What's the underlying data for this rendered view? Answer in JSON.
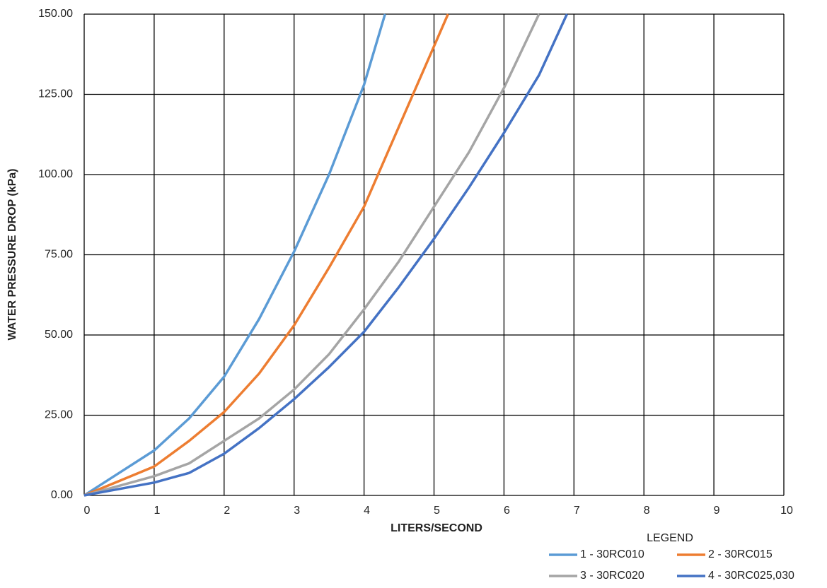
{
  "chart_data": {
    "type": "line",
    "xlabel": "LITERS/SECOND",
    "ylabel": "WATER PRESSURE DROP (kPa)",
    "legend_title": "LEGEND",
    "xlim": [
      0,
      10
    ],
    "xticks": [
      0,
      1,
      2,
      3,
      4,
      5,
      6,
      7,
      8,
      9,
      10
    ],
    "ylim": [
      0,
      150
    ],
    "yticks": [
      {
        "value": 0,
        "label": "0.00"
      },
      {
        "value": 25,
        "label": "25.00"
      },
      {
        "value": 50,
        "label": "50.00"
      },
      {
        "value": 75,
        "label": "75.00"
      },
      {
        "value": 100,
        "label": "100.00"
      },
      {
        "value": 125,
        "label": "125.00"
      },
      {
        "value": 150,
        "label": "150.00"
      }
    ],
    "grid": true,
    "legend": "bottom-right",
    "series": [
      {
        "name": "1 - 30RC010",
        "color": "#5b9bd5",
        "x": [
          0,
          0.5,
          1,
          1.5,
          2,
          2.5,
          3,
          3.5,
          4,
          4.3
        ],
        "values": [
          0,
          7,
          14,
          24,
          37,
          55,
          76,
          100,
          128,
          150
        ]
      },
      {
        "name": "2 - 30RC015",
        "color": "#ed7d31",
        "x": [
          0,
          0.5,
          1,
          1.5,
          2,
          2.5,
          3,
          3.5,
          4,
          4.5,
          5,
          5.2
        ],
        "values": [
          0,
          4.5,
          9,
          17,
          26,
          38,
          53,
          71,
          90,
          115,
          140,
          150
        ]
      },
      {
        "name": "3 - 30RC020",
        "color": "#a5a5a5",
        "x": [
          0,
          1,
          1.5,
          2,
          2.5,
          3,
          3.5,
          4,
          4.5,
          5,
          5.5,
          6,
          6.5
        ],
        "values": [
          0,
          6,
          10,
          17,
          24,
          33,
          44,
          58,
          73,
          90,
          107,
          127,
          150
        ]
      },
      {
        "name": "4 - 30RC025,030",
        "color": "#4472c4",
        "x": [
          0,
          1,
          1.5,
          2,
          2.5,
          3,
          3.5,
          4,
          4.5,
          5,
          5.5,
          6,
          6.5,
          6.9
        ],
        "values": [
          0,
          4,
          7,
          13,
          21,
          30,
          40,
          51,
          65,
          80,
          96,
          113,
          131,
          150
        ]
      }
    ]
  }
}
